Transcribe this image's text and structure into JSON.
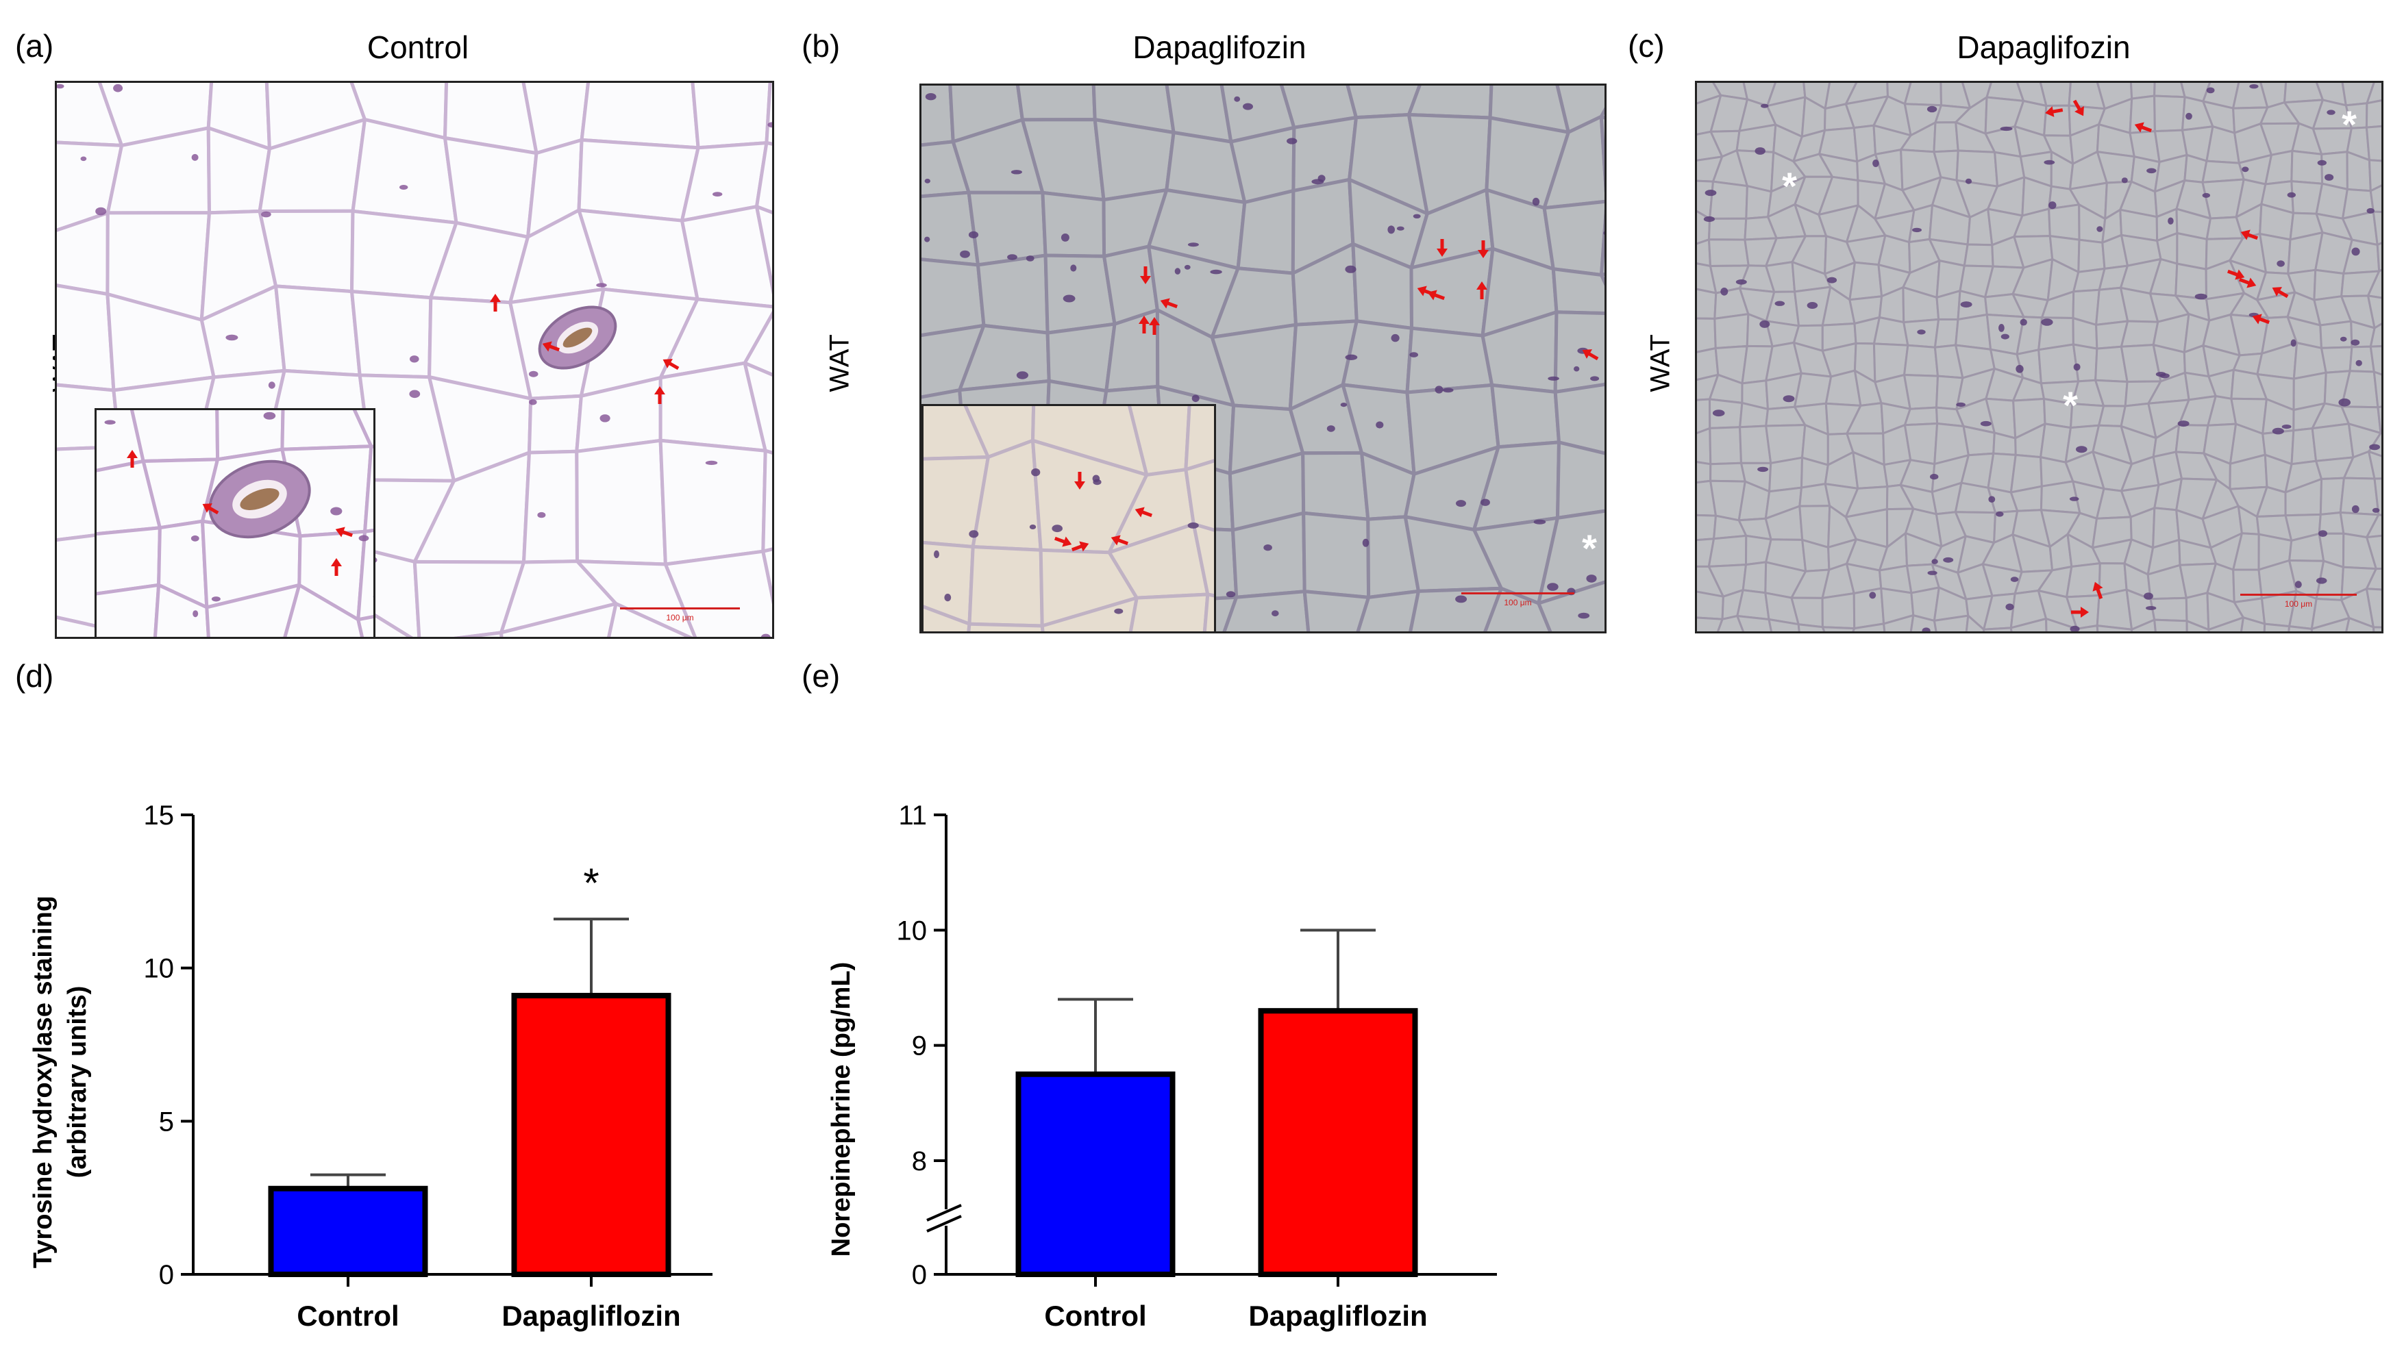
{
  "panels": {
    "a": {
      "label": "(a)",
      "title": "Control",
      "side_label": "WAT",
      "scale": "100 μm"
    },
    "b": {
      "label": "(b)",
      "title": "Dapaglifozin",
      "side_label": "WAT",
      "scale": "100 μm"
    },
    "c": {
      "label": "(c)",
      "title": "Dapaglifozin",
      "side_label": "WAT",
      "scale": "100 μm"
    },
    "d": {
      "label": "(d)"
    },
    "e": {
      "label": "(e)"
    }
  },
  "colors": {
    "control": "#0000ff",
    "dapagliflozin": "#ff0000",
    "arrow": "#e61414",
    "axis": "#000000"
  },
  "chart_data": [
    {
      "panel": "d",
      "type": "bar",
      "categories": [
        "Control",
        "Dapagliflozin"
      ],
      "values": [
        2.8,
        9.1
      ],
      "errors": [
        0.45,
        2.5
      ],
      "colors": [
        "#0000ff",
        "#ff0000"
      ],
      "ylabel_line1": "Tyrosine hydroxylase staining",
      "ylabel_line2": "(arbitrary units)",
      "ylim": [
        0,
        15
      ],
      "yticks": [
        0,
        5,
        10,
        15
      ],
      "ytick_labels": [
        "0",
        "5",
        "10",
        "15"
      ],
      "significance": [
        "",
        "*"
      ]
    },
    {
      "panel": "e",
      "type": "bar",
      "categories": [
        "Control",
        "Dapagliflozin"
      ],
      "values": [
        8.75,
        9.3
      ],
      "errors": [
        0.65,
        0.7
      ],
      "colors": [
        "#0000ff",
        "#ff0000"
      ],
      "ylabel_line1": "Norepinephrine (pg/mL)",
      "ylim": [
        8,
        11
      ],
      "axis_break": true,
      "yticks": [
        8,
        9,
        10,
        11
      ],
      "ytick_labels": [
        "8",
        "9",
        "10",
        "11"
      ],
      "baseline_label": "0"
    }
  ]
}
